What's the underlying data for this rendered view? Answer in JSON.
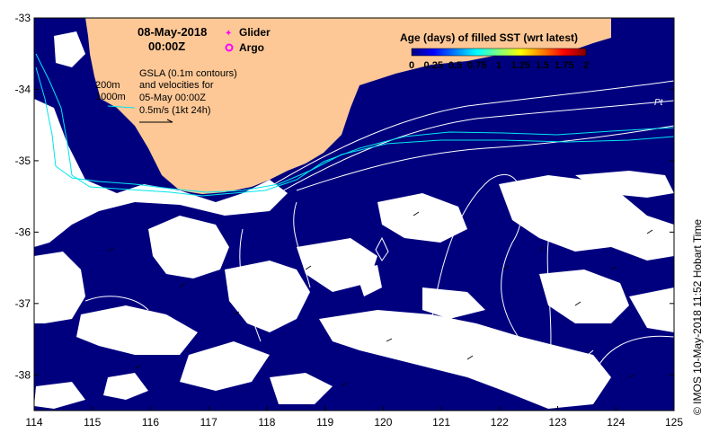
{
  "map": {
    "date": "08-May-2018",
    "time": "00:00Z",
    "legend_markers": [
      {
        "label": "Glider",
        "color": "#ff00ff",
        "symbol": "star"
      },
      {
        "label": "Argo",
        "color": "#ff00ff",
        "symbol": "circle"
      }
    ],
    "bathymetry_labels": [
      "200m",
      "1000m"
    ],
    "gsla_text": [
      "GSLA (0.1m contours)",
      "and velocities for",
      "05-May 00:00Z",
      "0.5m/s (1kt 24h)"
    ],
    "colorbar": {
      "title": "Age (days) of filled SST (wrt latest)",
      "ticks": [
        "0",
        "0.25",
        "0.5",
        "0.75",
        "1",
        "1.25",
        "1.5",
        "1.75",
        "2"
      ],
      "colors": [
        "#000080",
        "#0000ff",
        "#0080ff",
        "#00ffff",
        "#80ff80",
        "#ffff00",
        "#ff8000",
        "#ff0000",
        "#800000"
      ]
    },
    "place_label": "Pt",
    "credit": "© IMOS 10-May-2018 11:52 Hobart Time",
    "colors": {
      "ocean": "#00007f",
      "land": "#fdc896",
      "no_data": "#ffffff",
      "contour": "#ffffff",
      "bathymetry": "#00e5ee"
    },
    "axes": {
      "lon_ticks": [
        "114",
        "115",
        "116",
        "117",
        "118",
        "119",
        "120",
        "121",
        "122",
        "123",
        "124",
        "125"
      ],
      "lat_ticks": [
        "-33",
        "-34",
        "-35",
        "-36",
        "-37",
        "-38"
      ],
      "lon_range": [
        114,
        125
      ],
      "lat_range": [
        -38.5,
        -33
      ]
    }
  }
}
